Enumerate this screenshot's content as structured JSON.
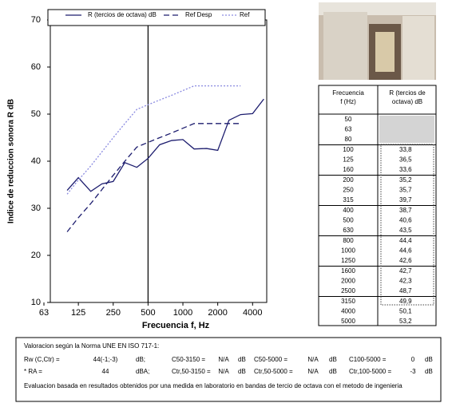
{
  "chart_data": {
    "type": "line",
    "title": null,
    "x_label": "Frecuencia f, Hz",
    "y_label": "Indice de reduccion sonora R dB",
    "x": [
      100,
      125,
      160,
      200,
      250,
      315,
      400,
      500,
      630,
      800,
      1000,
      1250,
      1600,
      2000,
      2500,
      3150,
      4000,
      5000
    ],
    "series": [
      {
        "name": "R (tercios de octava) dB",
        "color": "#1c1c6e",
        "dash": "solid",
        "values": [
          33.8,
          36.5,
          33.6,
          35.2,
          35.7,
          39.7,
          38.7,
          40.6,
          43.5,
          44.4,
          44.6,
          42.6,
          42.7,
          42.3,
          48.7,
          49.9,
          50.1,
          53.2
        ],
        "value_labels": [
          "33,8",
          "36,5",
          "33,6",
          "35,2",
          "35,7",
          "39,7",
          "38,7",
          "40,6",
          "43,5",
          "44,4",
          "44,6",
          "42,6",
          "42,7",
          "42,3",
          "48,7",
          "49,9",
          "50,1",
          "53,2"
        ]
      },
      {
        "name": "Ref Desp",
        "color": "#1c1c6e",
        "dash": "dashed",
        "values": [
          25,
          28,
          31,
          34,
          37,
          40,
          43,
          44,
          45,
          46,
          47,
          48,
          48,
          48,
          48,
          48,
          null,
          null
        ]
      },
      {
        "name": "Ref",
        "color": "#8a8ae0",
        "dash": "dotted",
        "values": [
          33,
          36,
          39,
          42,
          45,
          48,
          51,
          52,
          53,
          54,
          55,
          56,
          56,
          56,
          56,
          56,
          null,
          null
        ]
      }
    ],
    "xscale": "log",
    "xlim": [
      63,
      5300
    ],
    "xticks": [
      63,
      125,
      250,
      500,
      1000,
      2000,
      4000
    ],
    "ylim": [
      10,
      70
    ],
    "yticks": [
      10,
      20,
      30,
      40,
      50,
      60,
      70
    ],
    "reference_x": 500,
    "legend": "top"
  },
  "table": {
    "header": [
      "Frecuencia\nf  (Hz)",
      "R (tercios de\noctava) dB"
    ],
    "frequencies": [
      "50",
      "63",
      "80",
      "100",
      "125",
      "160",
      "200",
      "250",
      "315",
      "400",
      "500",
      "630",
      "800",
      "1000",
      "1250",
      "1600",
      "2000",
      "2500",
      "3150",
      "4000",
      "5000"
    ]
  },
  "footer": {
    "title": "Valoracion según la Norma UNE EN ISO 717-1:",
    "rows": [
      [
        "Rw (C,Ctr) =",
        "44(-1;-3)",
        "dB;",
        "C50-3150 =",
        "N/A",
        "dB",
        "C50-5000 =",
        "N/A",
        "dB",
        "C100-5000 =",
        "0",
        "dB"
      ],
      [
        "* RA =",
        "44",
        "dBA;",
        "Ctr,50-3150 =",
        "N/A",
        "dB",
        "Ctr,50-5000 =",
        "N/A",
        "dB",
        "Ctr,100-5000 =",
        "-3",
        "dB"
      ]
    ],
    "note": "Evaluacion basada en resultados obtenidos por una medida en laboratorio en bandas de tercio de octava con el metodo de ingenieria"
  }
}
